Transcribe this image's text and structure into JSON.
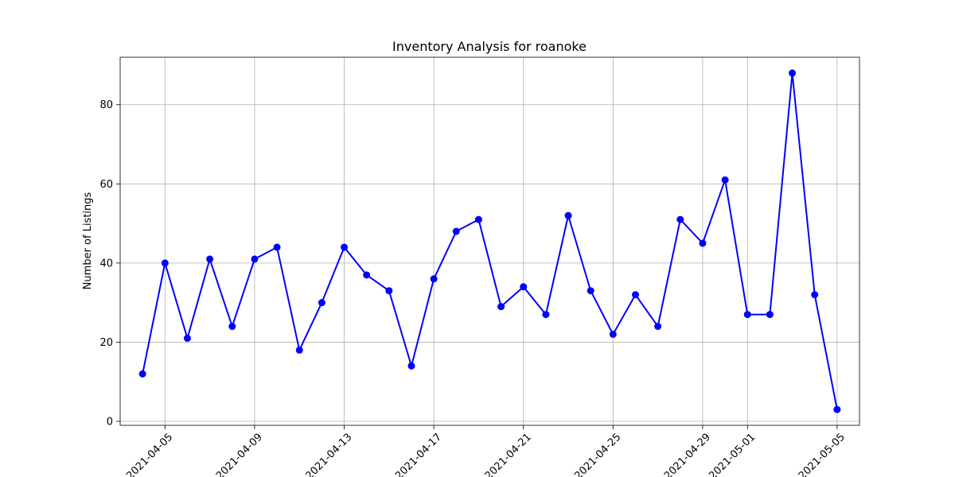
{
  "chart_data": {
    "type": "line",
    "title": "Inventory Analysis for roanoke",
    "xlabel": "",
    "ylabel": "Number of Listings",
    "grid": true,
    "marker": "circle",
    "line_color": "#0000ff",
    "x_type": "date",
    "xlim": [
      "2021-04-03",
      "2021-05-06"
    ],
    "ylim": [
      -1,
      92
    ],
    "x_ticks": [
      "2021-04-05",
      "2021-04-09",
      "2021-04-13",
      "2021-04-17",
      "2021-04-21",
      "2021-04-25",
      "2021-04-29",
      "2021-05-01",
      "2021-05-05"
    ],
    "y_ticks": [
      0,
      20,
      40,
      60,
      80
    ],
    "x": [
      "2021-04-04",
      "2021-04-05",
      "2021-04-06",
      "2021-04-07",
      "2021-04-08",
      "2021-04-09",
      "2021-04-10",
      "2021-04-11",
      "2021-04-12",
      "2021-04-13",
      "2021-04-14",
      "2021-04-15",
      "2021-04-16",
      "2021-04-17",
      "2021-04-18",
      "2021-04-19",
      "2021-04-20",
      "2021-04-21",
      "2021-04-22",
      "2021-04-23",
      "2021-04-24",
      "2021-04-25",
      "2021-04-26",
      "2021-04-27",
      "2021-04-28",
      "2021-04-29",
      "2021-04-30",
      "2021-05-01",
      "2021-05-02",
      "2021-05-03",
      "2021-05-04",
      "2021-05-05"
    ],
    "values": [
      12,
      40,
      21,
      41,
      24,
      41,
      44,
      18,
      30,
      44,
      37,
      33,
      14,
      36,
      48,
      51,
      29,
      34,
      27,
      52,
      33,
      22,
      32,
      24,
      51,
      45,
      61,
      27,
      27,
      88,
      32,
      3
    ]
  }
}
